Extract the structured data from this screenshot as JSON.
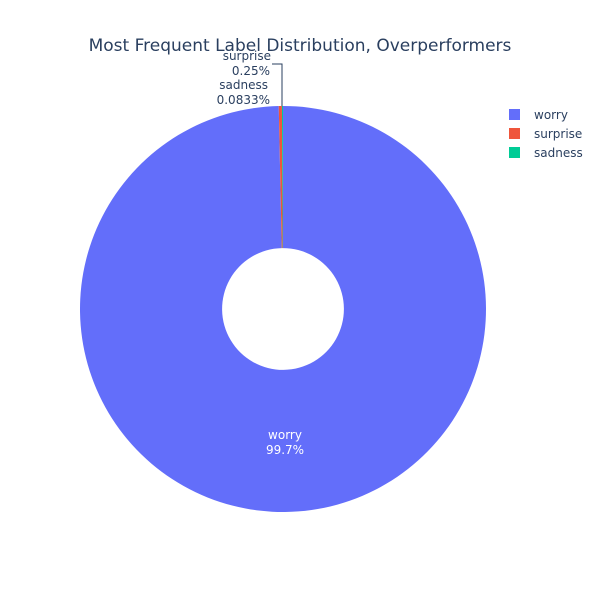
{
  "chart_data": {
    "type": "pie",
    "title": "Most Frequent Label Distribution, Overperformers",
    "hole": 0.3,
    "legend_position": "top-right",
    "slices": [
      {
        "label": "worry",
        "percent_text": "99.7%",
        "value": 99.6667,
        "color": "#636efa"
      },
      {
        "label": "surprise",
        "percent_text": "0.25%",
        "value": 0.25,
        "color": "#ef553b"
      },
      {
        "label": "sadness",
        "percent_text": "0.0833%",
        "value": 0.0833,
        "color": "#00cc96"
      }
    ]
  }
}
